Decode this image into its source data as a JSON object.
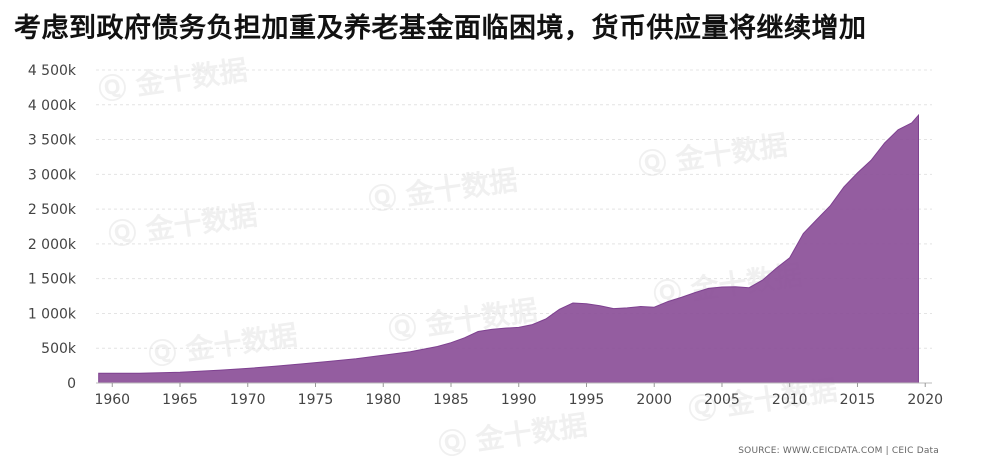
{
  "title": "考虑到政府债务负担加重及养老基金面临困境，货币供应量将继续增加",
  "source": "SOURCE: WWW.CEICDATA.COM | CEIC Data",
  "watermark": "金十数据",
  "chart_data": {
    "type": "area",
    "title": "考虑到政府债务负担加重及养老基金面临困境，货币供应量将继续增加",
    "xlabel": "",
    "ylabel": "",
    "xlim": [
      1958.8,
      2020.5
    ],
    "ylim": [
      0,
      4500000
    ],
    "grid": true,
    "legend": "none",
    "color": "#8b4f98",
    "yticks": [
      {
        "value": 0,
        "label": "0"
      },
      {
        "value": 500000,
        "label": "500k"
      },
      {
        "value": 1000000,
        "label": "1 000k"
      },
      {
        "value": 1500000,
        "label": "1 500k"
      },
      {
        "value": 2000000,
        "label": "2 000k"
      },
      {
        "value": 2500000,
        "label": "2 500k"
      },
      {
        "value": 3000000,
        "label": "3 000k"
      },
      {
        "value": 3500000,
        "label": "3 500k"
      },
      {
        "value": 4000000,
        "label": "4 000k"
      },
      {
        "value": 4500000,
        "label": "4 500k"
      }
    ],
    "xticks": [
      {
        "value": 1960,
        "label": "1960"
      },
      {
        "value": 1965,
        "label": "1965"
      },
      {
        "value": 1970,
        "label": "1970"
      },
      {
        "value": 1975,
        "label": "1975"
      },
      {
        "value": 1980,
        "label": "1980"
      },
      {
        "value": 1985,
        "label": "1985"
      },
      {
        "value": 1990,
        "label": "1990"
      },
      {
        "value": 1995,
        "label": "1995"
      },
      {
        "value": 2000,
        "label": "2000"
      },
      {
        "value": 2005,
        "label": "2005"
      },
      {
        "value": 2010,
        "label": "2010"
      },
      {
        "value": 2015,
        "label": "2015"
      },
      {
        "value": 2020,
        "label": "2020"
      }
    ],
    "x": [
      1959,
      1962,
      1965,
      1968,
      1970,
      1972,
      1974,
      1976,
      1978,
      1980,
      1982,
      1984,
      1985,
      1986,
      1987,
      1988,
      1989,
      1990,
      1991,
      1992,
      1993,
      1994,
      1995,
      1996,
      1997,
      1998,
      1999,
      2000,
      2001,
      2002,
      2003,
      2004,
      2005,
      2006,
      2007,
      2008,
      2009,
      2010,
      2011,
      2012,
      2013,
      2014,
      2015,
      2016,
      2017,
      2018,
      2019,
      2019.5
    ],
    "values": [
      140000,
      140000,
      155000,
      185000,
      210000,
      240000,
      275000,
      310000,
      350000,
      400000,
      450000,
      525000,
      580000,
      650000,
      740000,
      770000,
      790000,
      800000,
      840000,
      920000,
      1060000,
      1150000,
      1140000,
      1110000,
      1070000,
      1080000,
      1100000,
      1090000,
      1170000,
      1230000,
      1300000,
      1360000,
      1380000,
      1385000,
      1370000,
      1480000,
      1650000,
      1800000,
      2150000,
      2350000,
      2550000,
      2820000,
      3020000,
      3200000,
      3450000,
      3640000,
      3740000,
      3850000
    ]
  }
}
